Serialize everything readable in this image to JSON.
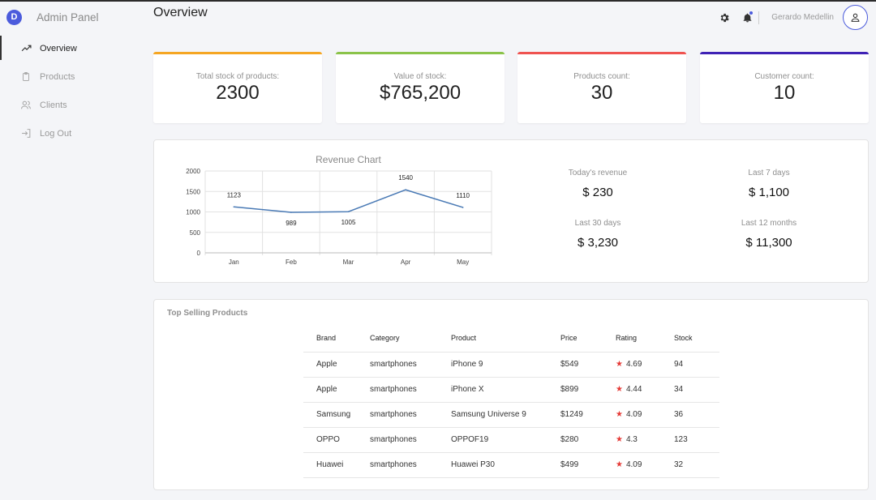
{
  "sidebar": {
    "brand_letter": "D",
    "brand_name": "Admin Panel",
    "items": [
      {
        "label": "Overview",
        "icon": "trending-up-icon",
        "active": true
      },
      {
        "label": "Products",
        "icon": "clipboard-icon",
        "active": false
      },
      {
        "label": "Clients",
        "icon": "users-icon",
        "active": false
      },
      {
        "label": "Log Out",
        "icon": "log-out-icon",
        "active": false
      }
    ]
  },
  "header": {
    "title": "Overview",
    "user_name": "Gerardo Medellin"
  },
  "stats": [
    {
      "label": "Total stock of products:",
      "value": "2300",
      "color": "#f5a623"
    },
    {
      "label": "Value of stock:",
      "value": "$765,200",
      "color": "#8bc34a"
    },
    {
      "label": "Products count:",
      "value": "30",
      "color": "#ef5350"
    },
    {
      "label": "Customer count:",
      "value": "10",
      "color": "#3f22b5"
    }
  ],
  "revenue": {
    "today_label": "Today's revenue",
    "today_value": "$ 230",
    "week_label": "Last 7 days",
    "week_value": "$ 1,100",
    "month_label": "Last 30 days",
    "month_value": "$ 3,230",
    "year_label": "Last 12 months",
    "year_value": "$ 11,300"
  },
  "chart_data": {
    "type": "line",
    "title": "Revenue Chart",
    "categories": [
      "Jan",
      "Feb",
      "Mar",
      "Apr",
      "May"
    ],
    "values": [
      1123,
      989,
      1005,
      1540,
      1110
    ],
    "ylim": [
      0,
      2000
    ],
    "yticks": [
      0,
      500,
      1000,
      1500,
      2000
    ],
    "grid": true,
    "line_color": "#4a7ab5"
  },
  "table": {
    "title": "Top Selling Products",
    "columns": [
      "Brand",
      "Category",
      "Product",
      "Price",
      "Rating",
      "Stock"
    ],
    "rows": [
      {
        "brand": "Apple",
        "category": "smartphones",
        "product": "iPhone 9",
        "price": "$549",
        "rating": "4.69",
        "stock": "94"
      },
      {
        "brand": "Apple",
        "category": "smartphones",
        "product": "iPhone X",
        "price": "$899",
        "rating": "4.44",
        "stock": "34"
      },
      {
        "brand": "Samsung",
        "category": "smartphones",
        "product": "Samsung Universe 9",
        "price": "$1249",
        "rating": "4.09",
        "stock": "36"
      },
      {
        "brand": "OPPO",
        "category": "smartphones",
        "product": "OPPOF19",
        "price": "$280",
        "rating": "4.3",
        "stock": "123"
      },
      {
        "brand": "Huawei",
        "category": "smartphones",
        "product": "Huawei P30",
        "price": "$499",
        "rating": "4.09",
        "stock": "32"
      }
    ]
  }
}
